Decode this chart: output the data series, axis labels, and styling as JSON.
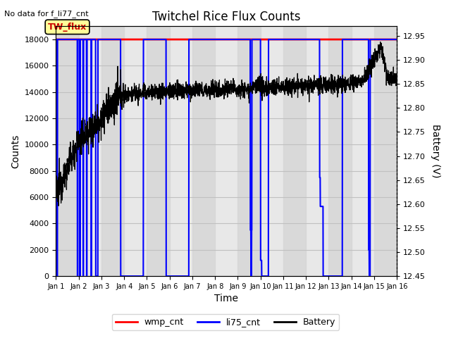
{
  "title": "Twitchel Rice Flux Counts",
  "no_data_label": "No data for f_li77_cnt",
  "tw_flux_label": "TW_flux",
  "xlabel": "Time",
  "ylabel_left": "Counts",
  "ylabel_right": "Battery (V)",
  "xlim_days": [
    0,
    15
  ],
  "ylim_left": [
    0,
    19000
  ],
  "ylim_right": [
    12.45,
    12.97
  ],
  "yticks_left": [
    0,
    2000,
    4000,
    6000,
    8000,
    10000,
    12000,
    14000,
    16000,
    18000
  ],
  "yticks_right": [
    12.45,
    12.5,
    12.55,
    12.6,
    12.65,
    12.7,
    12.75,
    12.8,
    12.85,
    12.9,
    12.95
  ],
  "xtick_labels": [
    "Jan 1",
    "Jan 2",
    "Jan 3",
    "Jan 4",
    "Jan 5",
    "Jan 6",
    "Jan 7",
    "Jan 8",
    "Jan 9",
    "Jan 10",
    "Jan 11",
    "Jan 12",
    "Jan 13",
    "Jan 14",
    "Jan 15",
    "Jan 16"
  ],
  "wmp_cnt_color": "#ff0000",
  "li75_cnt_color": "#0000ff",
  "battery_color": "#000000",
  "background_color": "#ffffff",
  "plot_bg_color": "#e8e8e8",
  "band_color_light": "#d4d4d4",
  "grid_color": "#c0c0c0",
  "tw_flux_box_color": "#ffff99",
  "tw_flux_border_color": "#000000",
  "tw_flux_text_color": "#cc0000",
  "wmp_value": 18000,
  "legend_entries": [
    "wmp_cnt",
    "li75_cnt",
    "Battery"
  ],
  "legend_colors": [
    "#ff0000",
    "#0000ff",
    "#000000"
  ]
}
